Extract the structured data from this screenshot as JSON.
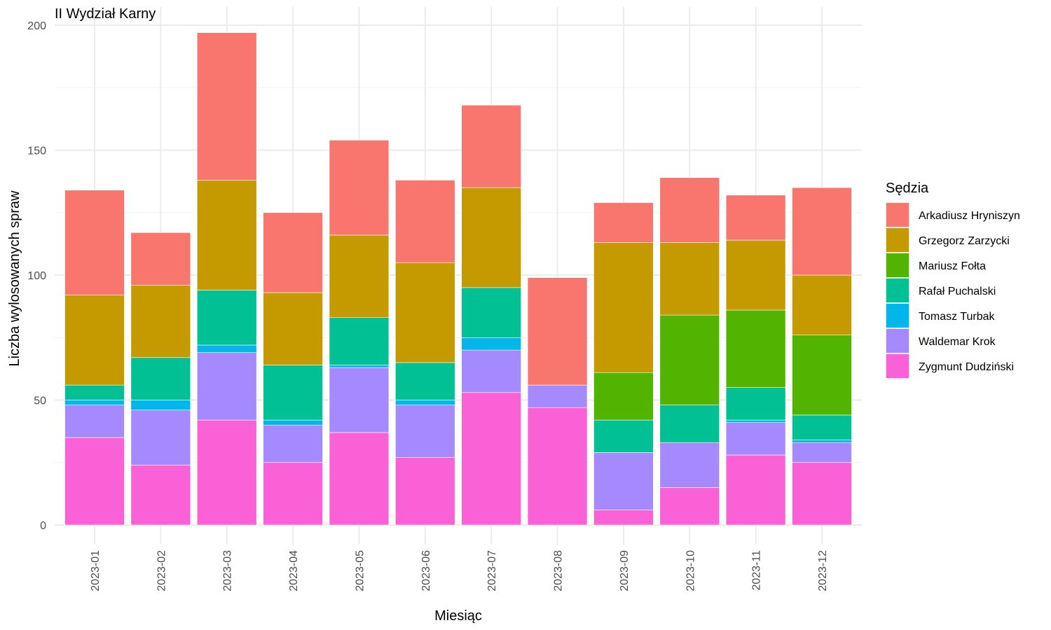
{
  "chart_data": {
    "type": "bar",
    "stacked": true,
    "title": "II Wydział Karny",
    "xlabel": "Miesiąc",
    "ylabel": "Liczba wylosowanych spraw",
    "ylim": [
      0,
      200
    ],
    "y_ticks": [
      0,
      50,
      100,
      150,
      200
    ],
    "grid": true,
    "legend_title": "Sędzia",
    "legend_position": "right",
    "categories": [
      "2023-01",
      "2023-02",
      "2023-03",
      "2023-04",
      "2023-05",
      "2023-06",
      "2023-07",
      "2023-08",
      "2023-09",
      "2023-10",
      "2023-11",
      "2023-12"
    ],
    "series": [
      {
        "name": "Arkadiusz Hryniszyn",
        "color": "#F8766D",
        "values": [
          42,
          21,
          59,
          32,
          38,
          33,
          33,
          43,
          16,
          26,
          18,
          35
        ]
      },
      {
        "name": "Grzegorz Zarzycki",
        "color": "#C49A00",
        "values": [
          36,
          29,
          44,
          29,
          33,
          40,
          40,
          0,
          52,
          29,
          28,
          24
        ]
      },
      {
        "name": "Mariusz Fołta",
        "color": "#53B400",
        "values": [
          0,
          0,
          0,
          0,
          0,
          0,
          0,
          0,
          19,
          36,
          31,
          32
        ]
      },
      {
        "name": "Rafał Puchalski",
        "color": "#00C094",
        "values": [
          6,
          17,
          22,
          22,
          19,
          15,
          20,
          0,
          13,
          15,
          13,
          10
        ]
      },
      {
        "name": "Tomasz Turbak",
        "color": "#00B6EB",
        "values": [
          2,
          4,
          3,
          2,
          1,
          2,
          5,
          0,
          0,
          0,
          1,
          1
        ]
      },
      {
        "name": "Waldemar Krok",
        "color": "#A58AFF",
        "values": [
          13,
          22,
          27,
          15,
          26,
          21,
          17,
          9,
          23,
          18,
          13,
          8
        ]
      },
      {
        "name": "Zygmunt Dudziński",
        "color": "#FB61D7",
        "values": [
          35,
          24,
          42,
          25,
          37,
          27,
          53,
          47,
          6,
          15,
          28,
          25
        ]
      }
    ]
  }
}
